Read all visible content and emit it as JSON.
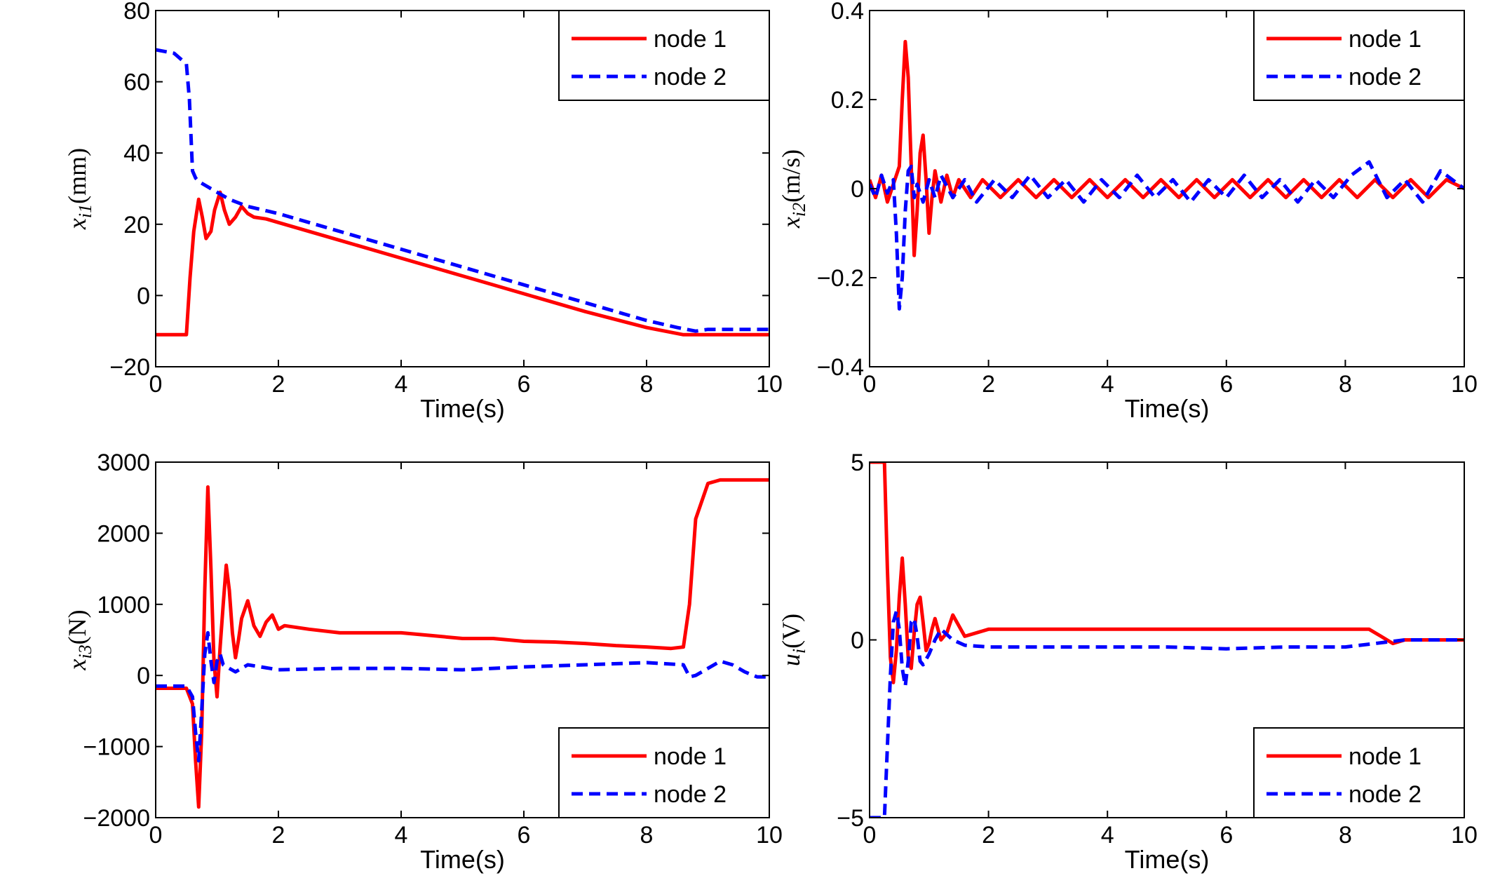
{
  "chart_data": [
    {
      "type": "line",
      "title": "",
      "xlabel": "Time(s)",
      "ylabel_base": "x",
      "ylabel_sub": "i1",
      "ylabel_unit": "(mm)",
      "xlim": [
        0,
        10
      ],
      "ylim": [
        -20,
        80
      ],
      "xticks": [
        0,
        2,
        4,
        6,
        8,
        10
      ],
      "yticks": [
        -20,
        0,
        20,
        40,
        60,
        80
      ],
      "ytick_labels": [
        "−20",
        "0",
        "20",
        "40",
        "60",
        "80"
      ],
      "legend": "top-right",
      "series": [
        {
          "name": "node 1",
          "color": "#ff0000",
          "dash": "solid",
          "x": [
            0,
            0.5,
            0.56,
            0.62,
            0.7,
            0.76,
            0.82,
            0.9,
            0.96,
            1.05,
            1.12,
            1.2,
            1.3,
            1.4,
            1.5,
            1.6,
            1.8,
            2,
            3,
            4,
            5,
            6,
            7,
            8,
            8.6,
            9,
            10
          ],
          "values": [
            -11,
            -11,
            5,
            18,
            27,
            22,
            16,
            18,
            24,
            29,
            24,
            20,
            22,
            25,
            23,
            22,
            21.5,
            20.5,
            15.5,
            10.5,
            5.5,
            0.5,
            -4.5,
            -9,
            -11,
            -11,
            -11
          ]
        },
        {
          "name": "node 2",
          "color": "#0000ff",
          "dash": "dashed",
          "x": [
            0,
            0.3,
            0.5,
            0.55,
            0.6,
            0.65,
            0.7,
            0.8,
            1,
            1.2,
            1.5,
            2,
            3,
            4,
            5,
            6,
            7,
            8,
            8.5,
            8.8,
            9,
            10
          ],
          "values": [
            69,
            68,
            65,
            55,
            35,
            33,
            32,
            31,
            29,
            27,
            25,
            23,
            18,
            13,
            8,
            3,
            -2,
            -7,
            -9,
            -10,
            -9.5,
            -9.5
          ]
        }
      ]
    },
    {
      "type": "line",
      "title": "",
      "xlabel": "Time(s)",
      "ylabel_base": "x",
      "ylabel_sub": "i2",
      "ylabel_unit": "(m/s)",
      "xlim": [
        0,
        10
      ],
      "ylim": [
        -0.4,
        0.4
      ],
      "xticks": [
        0,
        2,
        4,
        6,
        8,
        10
      ],
      "yticks": [
        -0.4,
        -0.2,
        0,
        0.2,
        0.4
      ],
      "ytick_labels": [
        "−0.4",
        "−0.2",
        "0",
        "0.2",
        "0.4"
      ],
      "legend": "top-right",
      "series": [
        {
          "name": "node 1",
          "color": "#ff0000",
          "dash": "solid",
          "x": [
            0,
            0.1,
            0.2,
            0.3,
            0.4,
            0.5,
            0.55,
            0.6,
            0.65,
            0.7,
            0.75,
            0.8,
            0.85,
            0.9,
            0.95,
            1,
            1.05,
            1.1,
            1.2,
            1.3,
            1.4,
            1.5,
            1.7,
            1.9,
            2.2,
            2.5,
            2.8,
            3.1,
            3.4,
            3.7,
            4,
            4.3,
            4.6,
            4.9,
            5.2,
            5.5,
            5.8,
            6.1,
            6.4,
            6.7,
            7,
            7.3,
            7.6,
            7.9,
            8.2,
            8.5,
            8.8,
            9.1,
            9.4,
            9.7,
            10
          ],
          "values": [
            0.02,
            -0.02,
            0.03,
            -0.03,
            0.01,
            0.05,
            0.2,
            0.33,
            0.25,
            0.05,
            -0.15,
            -0.05,
            0.08,
            0.12,
            0.02,
            -0.1,
            -0.02,
            0.04,
            -0.03,
            0.03,
            -0.02,
            0.02,
            -0.02,
            0.02,
            -0.02,
            0.02,
            -0.02,
            0.02,
            -0.02,
            0.02,
            -0.02,
            0.02,
            -0.02,
            0.02,
            -0.02,
            0.02,
            -0.02,
            0.02,
            -0.02,
            0.02,
            -0.02,
            0.02,
            -0.02,
            0.02,
            -0.02,
            0.02,
            -0.02,
            0.02,
            -0.02,
            0.02,
            0
          ]
        },
        {
          "name": "node 2",
          "color": "#0000ff",
          "dash": "dashed",
          "x": [
            0,
            0.1,
            0.2,
            0.3,
            0.4,
            0.45,
            0.5,
            0.55,
            0.6,
            0.65,
            0.7,
            0.75,
            0.8,
            0.9,
            1,
            1.1,
            1.2,
            1.4,
            1.6,
            1.8,
            2.1,
            2.4,
            2.7,
            3,
            3.3,
            3.6,
            3.9,
            4.2,
            4.5,
            4.8,
            5.1,
            5.4,
            5.7,
            6,
            6.3,
            6.6,
            6.9,
            7.2,
            7.5,
            7.8,
            8.1,
            8.4,
            8.7,
            9,
            9.3,
            9.6,
            10
          ],
          "values": [
            0.01,
            -0.02,
            0.03,
            -0.01,
            0.02,
            -0.1,
            -0.27,
            -0.2,
            -0.05,
            0.04,
            0.05,
            -0.02,
            0.01,
            -0.03,
            0.02,
            -0.02,
            0.03,
            -0.02,
            0.02,
            -0.03,
            0.02,
            -0.02,
            0.03,
            -0.02,
            0.02,
            -0.03,
            0.02,
            -0.02,
            0.03,
            -0.02,
            0.02,
            -0.03,
            0.02,
            -0.02,
            0.03,
            -0.02,
            0.02,
            -0.03,
            0.02,
            -0.02,
            0.03,
            0.06,
            -0.02,
            0.02,
            -0.03,
            0.04,
            0
          ]
        }
      ]
    },
    {
      "type": "line",
      "title": "",
      "xlabel": "Time(s)",
      "ylabel_base": "x",
      "ylabel_sub": "i3",
      "ylabel_unit": "(N)",
      "xlim": [
        0,
        10
      ],
      "ylim": [
        -2000,
        3000
      ],
      "xticks": [
        0,
        2,
        4,
        6,
        8,
        10
      ],
      "yticks": [
        -2000,
        -1000,
        0,
        1000,
        2000,
        3000
      ],
      "ytick_labels": [
        "−2000",
        "−1000",
        "0",
        "1000",
        "2000",
        "3000"
      ],
      "legend": "bottom-right",
      "series": [
        {
          "name": "node 1",
          "color": "#ff0000",
          "dash": "solid",
          "x": [
            0,
            0.5,
            0.6,
            0.65,
            0.7,
            0.75,
            0.8,
            0.85,
            0.9,
            0.95,
            1,
            1.05,
            1.1,
            1.15,
            1.2,
            1.25,
            1.3,
            1.35,
            1.4,
            1.5,
            1.6,
            1.7,
            1.8,
            1.9,
            2,
            2.1,
            2.5,
            3,
            3.5,
            4,
            4.5,
            5,
            5.5,
            6,
            6.5,
            7,
            7.5,
            8,
            8.4,
            8.6,
            8.7,
            8.8,
            9,
            9.2,
            10
          ],
          "values": [
            -180,
            -180,
            -400,
            -1200,
            -1850,
            -800,
            1200,
            2650,
            1500,
            200,
            -300,
            400,
            1000,
            1550,
            1200,
            600,
            250,
            500,
            800,
            1050,
            700,
            550,
            750,
            850,
            650,
            700,
            650,
            600,
            600,
            600,
            560,
            520,
            520,
            480,
            470,
            450,
            420,
            400,
            380,
            400,
            1000,
            2200,
            2700,
            2750,
            2750
          ]
        },
        {
          "name": "node 2",
          "color": "#0000ff",
          "dash": "dashed",
          "x": [
            0,
            0.5,
            0.6,
            0.65,
            0.7,
            0.75,
            0.8,
            0.85,
            0.9,
            0.95,
            1,
            1.05,
            1.1,
            1.2,
            1.3,
            1.4,
            1.5,
            2,
            3,
            4,
            5,
            6,
            7,
            8,
            8.6,
            8.7,
            8.8,
            9,
            9.2,
            9.4,
            9.6,
            9.8,
            10
          ],
          "values": [
            -150,
            -150,
            -300,
            -800,
            -1200,
            -500,
            300,
            600,
            200,
            -100,
            200,
            300,
            150,
            100,
            50,
            100,
            150,
            80,
            100,
            100,
            80,
            120,
            150,
            180,
            150,
            -20,
            0,
            100,
            200,
            150,
            50,
            -20,
            -20
          ]
        }
      ]
    },
    {
      "type": "line",
      "title": "",
      "xlabel": "Time(s)",
      "ylabel_base": "u",
      "ylabel_sub": "i",
      "ylabel_unit": "(V)",
      "xlim": [
        0,
        10
      ],
      "ylim": [
        -5,
        5
      ],
      "xticks": [
        0,
        2,
        4,
        6,
        8,
        10
      ],
      "yticks": [
        -5,
        0,
        5
      ],
      "ytick_labels": [
        "−5",
        "0",
        "5"
      ],
      "legend": "bottom-right",
      "series": [
        {
          "name": "node 1",
          "color": "#ff0000",
          "dash": "solid",
          "x": [
            0,
            0.25,
            0.3,
            0.35,
            0.4,
            0.45,
            0.5,
            0.55,
            0.6,
            0.65,
            0.7,
            0.75,
            0.8,
            0.85,
            0.9,
            0.95,
            1,
            1.05,
            1.1,
            1.15,
            1.2,
            1.3,
            1.4,
            1.5,
            1.6,
            2,
            3,
            4,
            5,
            6,
            7,
            8,
            8.4,
            8.6,
            8.8,
            9,
            10
          ],
          "values": [
            5,
            5,
            2,
            -0.5,
            -1.2,
            -0.3,
            1.2,
            2.3,
            1,
            -0.5,
            -0.8,
            0.2,
            1,
            1.2,
            0.5,
            -0.3,
            -0.1,
            0.3,
            0.6,
            0.3,
            0,
            0.2,
            0.7,
            0.4,
            0.1,
            0.3,
            0.3,
            0.3,
            0.3,
            0.3,
            0.3,
            0.3,
            0.3,
            0.1,
            -0.1,
            0,
            0
          ]
        },
        {
          "name": "node 2",
          "color": "#0000ff",
          "dash": "dashed",
          "x": [
            0,
            0.25,
            0.3,
            0.35,
            0.4,
            0.45,
            0.5,
            0.55,
            0.6,
            0.65,
            0.7,
            0.75,
            0.8,
            0.85,
            0.9,
            1,
            1.1,
            1.2,
            1.4,
            1.6,
            2,
            3,
            4,
            5,
            6,
            7,
            8,
            8.5,
            9,
            10
          ],
          "values": [
            -5,
            -5,
            -3,
            -1,
            0.5,
            0.8,
            0.3,
            -0.8,
            -1.3,
            -0.6,
            0.5,
            0.6,
            0.1,
            -0.6,
            -0.7,
            -0.4,
            0,
            0.3,
            0,
            -0.15,
            -0.2,
            -0.2,
            -0.2,
            -0.2,
            -0.25,
            -0.2,
            -0.2,
            -0.1,
            0,
            0
          ]
        }
      ]
    }
  ]
}
